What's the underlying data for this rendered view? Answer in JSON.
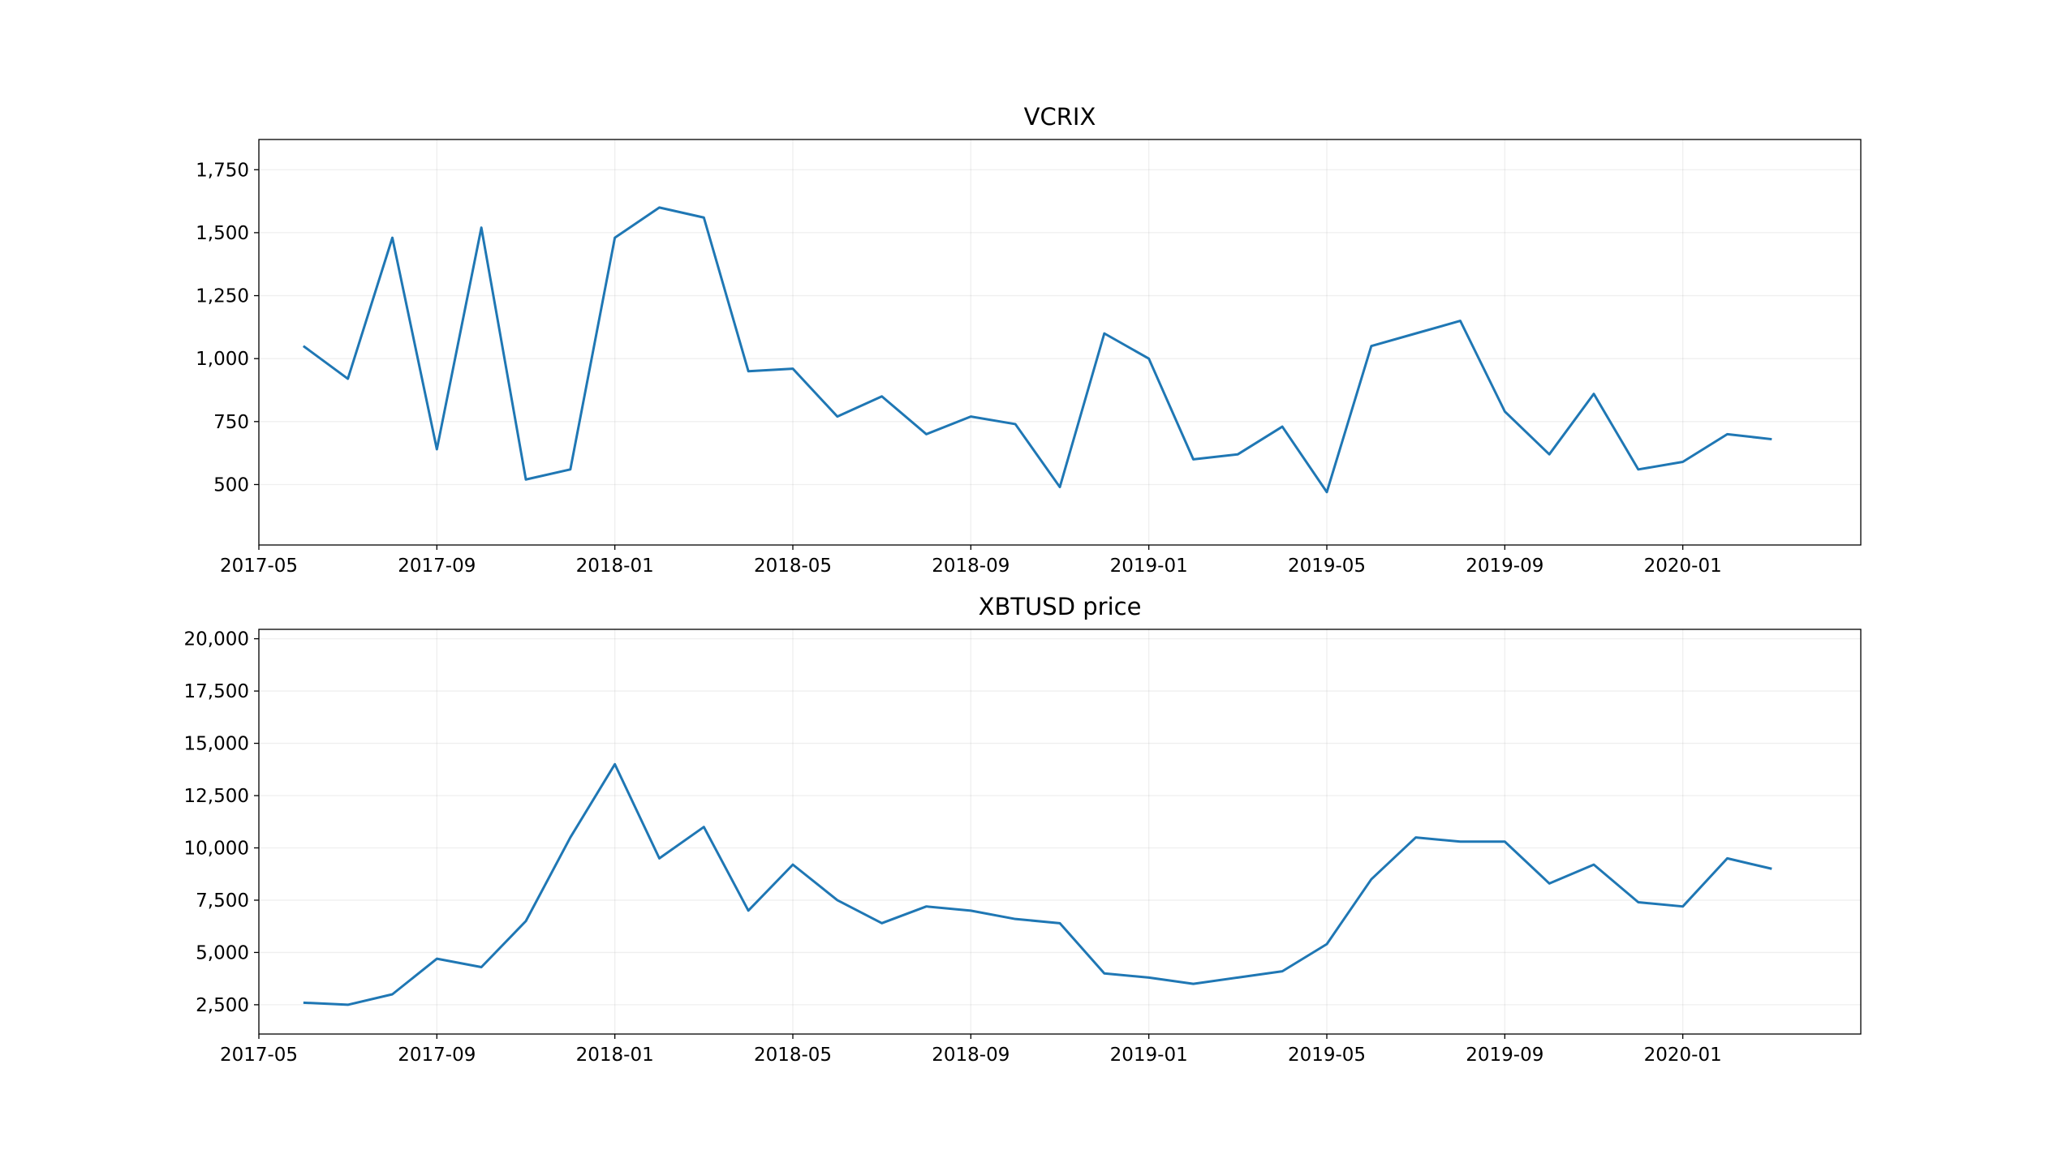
{
  "chart_data": [
    {
      "type": "line",
      "title": "VCRIX",
      "x": [
        "2017-06",
        "2017-07",
        "2017-08",
        "2017-09",
        "2017-10",
        "2017-11",
        "2017-12",
        "2018-01",
        "2018-02",
        "2018-03",
        "2018-04",
        "2018-05",
        "2018-06",
        "2018-07",
        "2018-08",
        "2018-09",
        "2018-10",
        "2018-11",
        "2018-12",
        "2019-01",
        "2019-02",
        "2019-03",
        "2019-04",
        "2019-05",
        "2019-06",
        "2019-07",
        "2019-08",
        "2019-09",
        "2019-10",
        "2019-11",
        "2019-12",
        "2020-01",
        "2020-02",
        "2020-03"
      ],
      "values": [
        1050,
        920,
        1480,
        640,
        1520,
        520,
        560,
        1480,
        1600,
        1560,
        950,
        960,
        770,
        850,
        700,
        770,
        740,
        490,
        1100,
        1000,
        600,
        620,
        730,
        470,
        1050,
        1100,
        1150,
        790,
        620,
        860,
        560,
        590,
        700,
        680
      ],
      "color": "#1f77b4",
      "grid": true,
      "xlim": [
        "2017-05",
        "2020-05"
      ],
      "xticks": [
        "2017-05",
        "2017-09",
        "2018-01",
        "2018-05",
        "2018-09",
        "2019-01",
        "2019-05",
        "2019-09",
        "2020-01"
      ],
      "ylim": [
        260,
        1870
      ],
      "yticks": [
        500,
        {
          "value": 750,
          "label": "750"
        },
        {
          "value": 1000,
          "label": "1,000"
        },
        {
          "value": 1250,
          "label": "1,250"
        },
        {
          "value": 1500,
          "label": "1,500"
        },
        {
          "value": 1750,
          "label": "1,750"
        }
      ]
    },
    {
      "type": "line",
      "title": "XBTUSD price",
      "x": [
        "2017-06",
        "2017-07",
        "2017-08",
        "2017-09",
        "2017-10",
        "2017-11",
        "2017-12",
        "2018-01",
        "2018-02",
        "2018-03",
        "2018-04",
        "2018-05",
        "2018-06",
        "2018-07",
        "2018-08",
        "2018-09",
        "2018-10",
        "2018-11",
        "2018-12",
        "2019-01",
        "2019-02",
        "2019-03",
        "2019-04",
        "2019-05",
        "2019-06",
        "2019-07",
        "2019-08",
        "2019-09",
        "2019-10",
        "2019-11",
        "2019-12",
        "2020-01",
        "2020-02",
        "2020-03"
      ],
      "values": [
        2600,
        2500,
        3000,
        4700,
        4300,
        6500,
        10500,
        14000,
        9500,
        11000,
        7000,
        9200,
        7500,
        6400,
        7200,
        7000,
        6600,
        6400,
        4000,
        3800,
        3500,
        3800,
        4100,
        5400,
        8500,
        10500,
        10300,
        10300,
        8300,
        9200,
        7400,
        7200,
        9500,
        9000
      ],
      "color": "#1f77b4",
      "grid": true,
      "xlim": [
        "2017-05",
        "2020-05"
      ],
      "xticks": [
        "2017-05",
        "2017-09",
        "2018-01",
        "2018-05",
        "2018-09",
        "2019-01",
        "2019-05",
        "2019-09",
        "2020-01"
      ],
      "ylim": [
        1100,
        20450
      ],
      "yticks": [
        {
          "value": 2500,
          "label": "2,500"
        },
        {
          "value": 5000,
          "label": "5,000"
        },
        {
          "value": 7500,
          "label": "7,500"
        },
        {
          "value": 10000,
          "label": "10,000"
        },
        {
          "value": 12500,
          "label": "12,500"
        },
        {
          "value": 15000,
          "label": "15,000"
        },
        {
          "value": 17500,
          "label": "17,500"
        },
        {
          "value": 20000,
          "label": "20,000"
        }
      ]
    }
  ]
}
